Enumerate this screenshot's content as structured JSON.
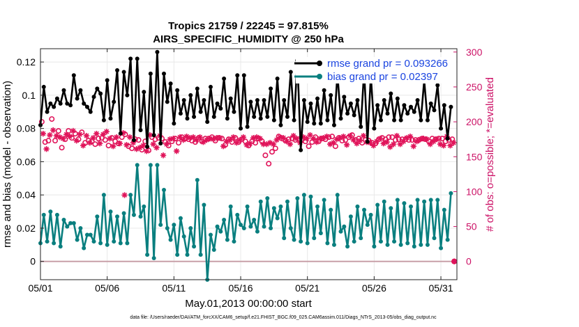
{
  "chart_data": {
    "type": "line",
    "title": "Tropics 21759 / 22245 = 97.815%",
    "subtitle": "AIRS_SPECIFIC_HUMIDITY @ 250 hPa",
    "xlabel": "May.01,2013 00:00:00 start",
    "ylabel": "rmse and bias (model - observation)",
    "ylabel_right": "# of obs: o=possible; *=evaluated",
    "xlim": [
      0,
      31.2
    ],
    "ylim": [
      -0.011,
      0.128
    ],
    "ylim_right": [
      -0.011,
      0.128
    ],
    "x_ticks": [
      0,
      5,
      10,
      15,
      20,
      25,
      30
    ],
    "x_tick_labels": [
      "05/01",
      "05/06",
      "05/11",
      "05/16",
      "05/21",
      "05/26",
      "05/31"
    ],
    "y_ticks": [
      0,
      0.02,
      0.04,
      0.06,
      0.08,
      0.1,
      0.12
    ],
    "y_tick_labels": [
      "0",
      "0.02",
      "0.04",
      "0.06",
      "0.08",
      "0.1",
      "0.12"
    ],
    "y_ticks_right_values": [
      0,
      0.021,
      0.042,
      0.063,
      0.084,
      0.105,
      0.126
    ],
    "y_tick_labels_right": [
      "0",
      "50",
      "100",
      "150",
      "200",
      "250",
      "300"
    ],
    "zero_line_color": "#c8a0a8",
    "grid_color": "#e8e8e8",
    "colors": {
      "rmse": "#000000",
      "bias": "#0a7f7f",
      "obs": "#e0145a",
      "right_axis": "#cc1166",
      "legend_text": "#1a44e0"
    },
    "series": [
      {
        "name": "rmse grand pr = 0.093266",
        "color": "#000000",
        "values": [
          0.082,
          0.105,
          0.09,
          0.095,
          0.093,
          0.098,
          0.095,
          0.103,
          0.095,
          0.094,
          0.112,
          0.098,
          0.103,
          0.095,
          0.093,
          0.09,
          0.099,
          0.104,
          0.101,
          0.085,
          0.109,
          0.086,
          0.096,
          0.115,
          0.077,
          0.114,
          0.1,
          0.122,
          0.073,
          0.122,
          0.079,
          0.102,
          0.069,
          0.113,
          0.076,
          0.126,
          0.071,
          0.113,
          0.096,
          0.107,
          0.083,
          0.103,
          0.089,
          0.097,
          0.086,
          0.1,
          0.087,
          0.104,
          0.09,
          0.097,
          0.084,
          0.105,
          0.087,
          0.095,
          0.092,
          0.11,
          0.086,
          0.098,
          0.09,
          0.112,
          0.08,
          0.112,
          0.081,
          0.096,
          0.087,
          0.097,
          0.086,
          0.097,
          0.087,
          0.104,
          0.085,
          0.11,
          0.082,
          0.097,
          0.087,
          0.114,
          0.085,
          0.121,
          0.067,
          0.097,
          0.084,
          0.095,
          0.083,
          0.098,
          0.083,
          0.103,
          0.085,
          0.1,
          0.082,
          0.113,
          0.086,
          0.099,
          0.089,
          0.095,
          0.088,
          0.097,
          0.081,
          0.115,
          0.072,
          0.112,
          0.08,
          0.094,
          0.085,
          0.097,
          0.089,
          0.101,
          0.085,
          0.098,
          0.085,
          0.094,
          0.089,
          0.093,
          0.09,
          0.097,
          0.085,
          0.109,
          0.085,
          0.095,
          0.091,
          0.106,
          0.08,
          0.094,
          0.074,
          0.093
        ],
        "x_start": 0,
        "x_step": 0.25
      },
      {
        "name": "bias grand pr = 0.02397",
        "color": "#0a7f7f",
        "values": [
          0.011,
          0.028,
          0.012,
          0.03,
          0.011,
          0.028,
          0.009,
          0.025,
          0.021,
          0.023,
          0.023,
          0.013,
          0.02,
          0.008,
          0.016,
          0.016,
          0.012,
          0.027,
          0.011,
          0.04,
          0.01,
          0.03,
          0.012,
          0.027,
          0.011,
          0.029,
          0.011,
          0.04,
          0.028,
          0.058,
          0.027,
          0.033,
          0.004,
          0.058,
          0.002,
          0.058,
          0.022,
          0.043,
          0.02,
          0.013,
          0.022,
          0.004,
          0.026,
          0.015,
          0.004,
          0.02,
          0.009,
          0.049,
          0.004,
          0.034,
          -0.011,
          0.016,
          0.007,
          0.021,
          0.018,
          0.025,
          0.013,
          0.033,
          0.012,
          0.028,
          0.022,
          0.02,
          0.033,
          0.021,
          0.025,
          0.018,
          0.036,
          0.021,
          0.038,
          0.02,
          0.032,
          0.026,
          0.033,
          0.014,
          0.036,
          0.02,
          0.013,
          0.038,
          0.012,
          0.04,
          0.011,
          0.039,
          0.014,
          0.033,
          0.017,
          0.037,
          0.011,
          0.031,
          0.01,
          0.04,
          0.018,
          0.021,
          0.009,
          0.027,
          0.012,
          0.033,
          0.014,
          0.031,
          0.022,
          0.028,
          0.009,
          0.034,
          0.012,
          0.036,
          0.01,
          0.032,
          0.012,
          0.037,
          0.01,
          0.035,
          0.011,
          0.033,
          0.009,
          0.037,
          0.01,
          0.036,
          0.01,
          0.037,
          0.014,
          0.037,
          0.008,
          0.031,
          0.013,
          0.041
        ],
        "x_start": 0,
        "x_step": 0.25
      }
    ],
    "obs_possible": {
      "name": "possible (o)",
      "x_start": 0.1,
      "x_step": 0.25,
      "values": [
        200,
        171,
        173,
        204,
        173,
        187,
        163,
        175,
        187,
        177,
        183,
        175,
        185,
        170,
        173,
        172,
        168,
        176,
        177,
        174,
        166,
        177,
        172,
        169,
        178,
        182,
        165,
        162,
        175,
        174,
        160,
        172,
        159,
        178,
        175,
        177,
        176,
        171,
        166,
        172,
        176,
        170,
        178,
        176,
        175,
        173,
        171,
        177,
        172,
        176,
        176,
        178,
        173,
        177,
        176,
        167,
        175,
        171,
        177,
        171,
        175,
        172,
        166,
        172,
        170,
        176,
        172,
        152,
        140,
        157,
        162,
        179,
        176,
        173,
        175,
        176,
        174,
        175,
        175,
        172,
        165,
        171,
        178,
        172,
        176,
        175,
        178,
        179,
        165,
        177,
        173,
        174,
        178,
        181,
        174,
        176,
        170,
        174,
        173,
        170,
        169,
        175,
        177,
        175,
        178,
        178,
        174,
        175,
        175,
        175,
        174,
        174,
        174,
        174,
        176,
        175,
        172,
        176,
        175,
        176,
        176,
        172,
        174,
        175
      ],
      "extra_points": [
        [
          31.0,
          0
        ]
      ]
    },
    "obs_evaluated": {
      "name": "evaluated (*)",
      "x_start": 0.2,
      "x_step": 0.25,
      "values": [
        183,
        161,
        181,
        188,
        180,
        178,
        176,
        182,
        179,
        187,
        173,
        182,
        166,
        180,
        170,
        177,
        183,
        169,
        182,
        186,
        176,
        165,
        178,
        169,
        184,
        167,
        178,
        170,
        161,
        163,
        166,
        158,
        181,
        168,
        163,
        180,
        152,
        168,
        175,
        176,
        158,
        178,
        174,
        179,
        177,
        178,
        174,
        178,
        171,
        174,
        176,
        175,
        177,
        177,
        165,
        172,
        174,
        178,
        170,
        174,
        178,
        167,
        169,
        177,
        178,
        176,
        168,
        168,
        170,
        168,
        174,
        178,
        177,
        172,
        168,
        180,
        176,
        170,
        178,
        176,
        181,
        176,
        171,
        176,
        177,
        179,
        168,
        170,
        175,
        177,
        179,
        167,
        180,
        174,
        169,
        173,
        180,
        171,
        170,
        166,
        172,
        176,
        169,
        171,
        164,
        168,
        180,
        168,
        172,
        177,
        179,
        165,
        172,
        175,
        176,
        175,
        168,
        172,
        175,
        168,
        166,
        179,
        166,
        170
      ],
      "extra_points": [
        [
          6.3,
          95
        ],
        [
          31.0,
          0
        ]
      ]
    }
  },
  "footer": "data file: /Users/raeder/DAI/ATM_forcXX/CAM6_setup/f.e21.FHIST_BGC.f09_025.CAM6assim.011/Diags_NTrS_2013-05/obs_diag_output.nc"
}
